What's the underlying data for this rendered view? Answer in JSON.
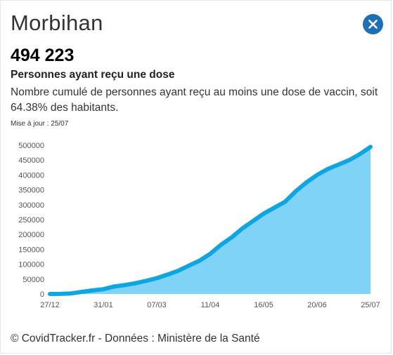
{
  "header": {
    "title": "Morbihan",
    "close_icon": "close-icon"
  },
  "stat": {
    "value": "494 223",
    "label": "Personnes ayant reçu une dose",
    "description": "Nombre cumulé de personnes ayant reçu au moins une dose de vaccin, soit 64.38% des habitants.",
    "updated": "Mise à jour : 25/07"
  },
  "footer": {
    "text": "© CovidTracker.fr - Données : Ministère de la Santé"
  },
  "colors": {
    "accent": "#1f6fb7",
    "line": "#0ea5e3",
    "fill": "#7fd3f7"
  },
  "chart_data": {
    "type": "area",
    "title": "",
    "xlabel": "",
    "ylabel": "",
    "ylim": [
      0,
      500000
    ],
    "grid": false,
    "legend": "none",
    "yticks": [
      0,
      50000,
      100000,
      150000,
      200000,
      250000,
      300000,
      350000,
      400000,
      450000,
      500000
    ],
    "xticks": [
      "27/12",
      "31/01",
      "07/03",
      "11/04",
      "16/05",
      "20/06",
      "25/07"
    ],
    "x": [
      "27/12",
      "03/01",
      "10/01",
      "17/01",
      "24/01",
      "31/01",
      "07/02",
      "14/02",
      "21/02",
      "28/02",
      "07/03",
      "14/03",
      "21/03",
      "28/03",
      "04/04",
      "11/04",
      "18/04",
      "25/04",
      "02/05",
      "09/05",
      "16/05",
      "23/05",
      "30/05",
      "06/06",
      "13/06",
      "20/06",
      "27/06",
      "04/07",
      "11/07",
      "18/07",
      "25/07"
    ],
    "series": [
      {
        "values": [
          0,
          200,
          2000,
          7000,
          12000,
          16000,
          25000,
          30000,
          36000,
          44000,
          53000,
          65000,
          78000,
          95000,
          112000,
          135000,
          165000,
          190000,
          220000,
          245000,
          270000,
          290000,
          310000,
          345000,
          375000,
          400000,
          420000,
          435000,
          450000,
          470000,
          494223
        ]
      }
    ]
  }
}
